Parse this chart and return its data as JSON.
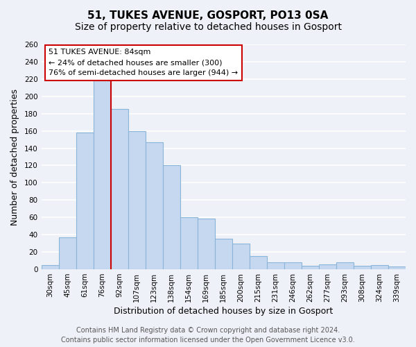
{
  "title": "51, TUKES AVENUE, GOSPORT, PO13 0SA",
  "subtitle": "Size of property relative to detached houses in Gosport",
  "xlabel": "Distribution of detached houses by size in Gosport",
  "ylabel": "Number of detached properties",
  "bar_labels": [
    "30sqm",
    "45sqm",
    "61sqm",
    "76sqm",
    "92sqm",
    "107sqm",
    "123sqm",
    "138sqm",
    "154sqm",
    "169sqm",
    "185sqm",
    "200sqm",
    "215sqm",
    "231sqm",
    "246sqm",
    "262sqm",
    "277sqm",
    "293sqm",
    "308sqm",
    "324sqm",
    "339sqm"
  ],
  "bar_values": [
    5,
    37,
    158,
    218,
    185,
    160,
    147,
    120,
    60,
    59,
    35,
    30,
    15,
    8,
    8,
    4,
    6,
    8,
    4,
    5,
    3
  ],
  "bar_color": "#c5d8f0",
  "bar_edge_color": "#8ab4d8",
  "vline_x": 3.5,
  "vline_color": "#cc0000",
  "annotation_title": "51 TUKES AVENUE: 84sqm",
  "annotation_line1": "← 24% of detached houses are smaller (300)",
  "annotation_line2": "76% of semi-detached houses are larger (944) →",
  "annotation_box_color": "white",
  "annotation_box_edge": "#cc0000",
  "ylim": [
    0,
    260
  ],
  "yticks": [
    0,
    20,
    40,
    60,
    80,
    100,
    120,
    140,
    160,
    180,
    200,
    220,
    240,
    260
  ],
  "footer_line1": "Contains HM Land Registry data © Crown copyright and database right 2024.",
  "footer_line2": "Contains public sector information licensed under the Open Government Licence v3.0.",
  "background_color": "#eef2f8",
  "grid_color": "white",
  "title_fontsize": 11,
  "subtitle_fontsize": 10,
  "axis_label_fontsize": 9,
  "tick_fontsize": 7.5,
  "footer_fontsize": 7
}
